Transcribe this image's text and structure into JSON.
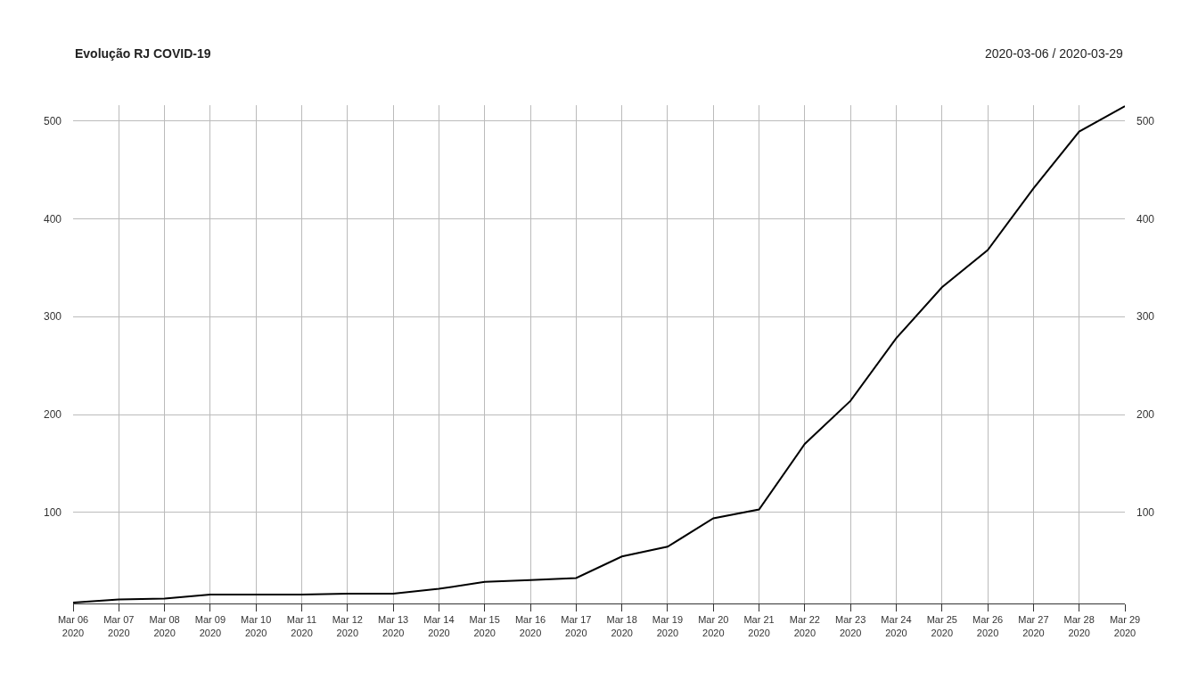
{
  "chart_data": {
    "type": "line",
    "title": "Evolução RJ COVID-19",
    "subtitle": "2020-03-06 / 2020-03-29",
    "x": [
      "2020-03-06",
      "2020-03-07",
      "2020-03-08",
      "2020-03-09",
      "2020-03-10",
      "2020-03-11",
      "2020-03-12",
      "2020-03-13",
      "2020-03-14",
      "2020-03-15",
      "2020-03-16",
      "2020-03-17",
      "2020-03-18",
      "2020-03-19",
      "2020-03-20",
      "2020-03-21",
      "2020-03-22",
      "2020-03-23",
      "2020-03-24",
      "2020-03-25",
      "2020-03-26",
      "2020-03-27",
      "2020-03-28",
      "2020-03-29"
    ],
    "series": [
      {
        "color": "#000000",
        "values": [
          8,
          11,
          12,
          16,
          16,
          16,
          17,
          17,
          22,
          29,
          31,
          33,
          55,
          65,
          94,
          103,
          170,
          214,
          278,
          330,
          368,
          431,
          489,
          515
        ]
      }
    ],
    "xlim": [
      "2020-03-06",
      "2020-03-29"
    ],
    "xticks": [
      {
        "value": "2020-03-06",
        "label": "Mar 06\n2020"
      },
      {
        "value": "2020-03-07",
        "label": "Mar 07\n2020"
      },
      {
        "value": "2020-03-08",
        "label": "Mar 08\n2020"
      },
      {
        "value": "2020-03-09",
        "label": "Mar 09\n2020"
      },
      {
        "value": "2020-03-10",
        "label": "Mar 10\n2020"
      },
      {
        "value": "2020-03-11",
        "label": "Mar 11\n2020"
      },
      {
        "value": "2020-03-12",
        "label": "Mar 12\n2020"
      },
      {
        "value": "2020-03-13",
        "label": "Mar 13\n2020"
      },
      {
        "value": "2020-03-14",
        "label": "Mar 14\n2020"
      },
      {
        "value": "2020-03-15",
        "label": "Mar 15\n2020"
      },
      {
        "value": "2020-03-16",
        "label": "Mar 16\n2020"
      },
      {
        "value": "2020-03-17",
        "label": "Mar 17\n2020"
      },
      {
        "value": "2020-03-18",
        "label": "Mar 18\n2020"
      },
      {
        "value": "2020-03-19",
        "label": "Mar 19\n2020"
      },
      {
        "value": "2020-03-20",
        "label": "Mar 20\n2020"
      },
      {
        "value": "2020-03-21",
        "label": "Mar 21\n2020"
      },
      {
        "value": "2020-03-22",
        "label": "Mar 22\n2020"
      },
      {
        "value": "2020-03-23",
        "label": "Mar 23\n2020"
      },
      {
        "value": "2020-03-24",
        "label": "Mar 24\n2020"
      },
      {
        "value": "2020-03-25",
        "label": "Mar 25\n2020"
      },
      {
        "value": "2020-03-26",
        "label": "Mar 26\n2020"
      },
      {
        "value": "2020-03-27",
        "label": "Mar 27\n2020"
      },
      {
        "value": "2020-03-28",
        "label": "Mar 28\n2020"
      },
      {
        "value": "2020-03-29",
        "label": "Mar 29\n2020"
      }
    ],
    "ylim": [
      7,
      516
    ],
    "yticks": [
      100,
      200,
      300,
      400,
      500
    ],
    "y2lim": [
      7,
      516
    ],
    "y2ticks": [
      100,
      200,
      300,
      400,
      500
    ],
    "grid": true,
    "marker": "none",
    "line_style": "solid"
  }
}
